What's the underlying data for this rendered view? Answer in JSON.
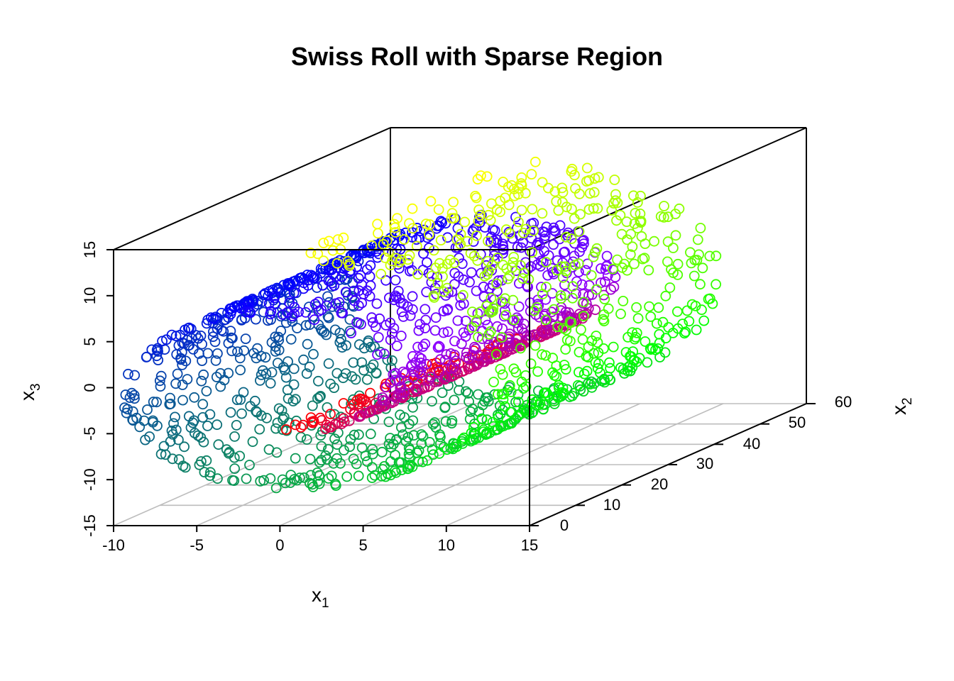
{
  "chart_data": {
    "type": "scatter",
    "title": "Swiss Roll with Sparse Region",
    "xlabel": "x",
    "xlabel_sub": "1",
    "ylabel": "x",
    "ylabel_sub": "2",
    "zlabel": "x",
    "zlabel_sub": "3",
    "xlim": [
      -10,
      15
    ],
    "ylim": [
      0,
      60
    ],
    "zlim": [
      -15,
      15
    ],
    "x_ticks": [
      "-10",
      "-5",
      "0",
      "5",
      "10",
      "15"
    ],
    "y_ticks": [
      "0",
      "10",
      "20",
      "30",
      "40",
      "50",
      "60"
    ],
    "z_ticks": [
      "-15",
      "-10",
      "-5",
      "0",
      "5",
      "10",
      "15"
    ],
    "grid": "floor",
    "marker": "open-circle",
    "color_scale": [
      "#ff0000",
      "#8b00ff",
      "#0000ff",
      "#0e7b6b",
      "#00ff00",
      "#ffff00"
    ],
    "roll": {
      "t_range": [
        4.7,
        14.1
      ],
      "y_range": [
        0,
        50
      ],
      "point_count": 1800,
      "sparse_region_count": 0
    }
  }
}
